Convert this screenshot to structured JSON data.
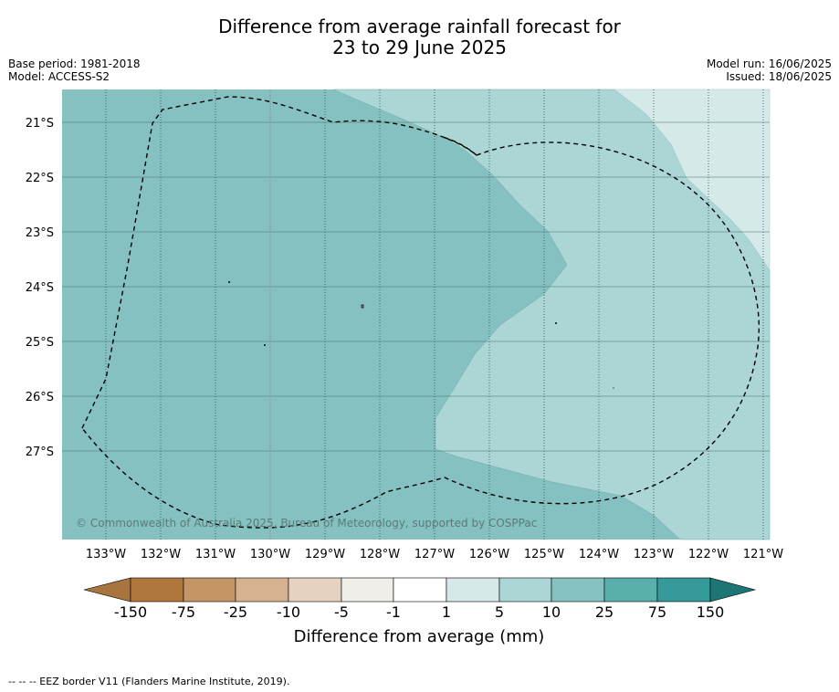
{
  "title_line1": "Difference from average rainfall forecast for",
  "title_line2": "23 to 29 June 2025",
  "base_period": "Base period: 1981-2018",
  "model": "Model: ACCESS-S2",
  "model_run": "Model run: 16/06/2025",
  "issued": "Issued: 18/06/2025",
  "copyright": "© Commonwealth of Australia 2025, Bureau of Meteorology, supported by COSPPac",
  "footer": "--  --  -- EEZ border V11 (Flanders Marine Institute, 2019).",
  "map": {
    "lon_labels": [
      "133°W",
      "132°W",
      "131°W",
      "130°W",
      "129°W",
      "128°W",
      "127°W",
      "126°W",
      "125°W",
      "124°W",
      "123°W",
      "122°W",
      "121°W"
    ],
    "lat_labels": [
      "21°S",
      "22°S",
      "23°S",
      "24°S",
      "25°S",
      "26°S",
      "27°S"
    ],
    "colors": {
      "category_10_to_25": "#85c1c0",
      "category_5_to_10": "#abd6d5",
      "category_1_to_5": "#d4e9e8"
    }
  },
  "colorbar": {
    "title": "Difference from average (mm)",
    "labels": [
      "-150",
      "-75",
      "-25",
      "-10",
      "-5",
      "-1",
      "1",
      "5",
      "10",
      "25",
      "75",
      "150"
    ],
    "colors": [
      "#a87440",
      "#b0773d",
      "#c39567",
      "#d5b391",
      "#e6d2c0",
      "#f0eee8",
      "#ffffff",
      "#d4e9e8",
      "#abd6d5",
      "#85c1c0",
      "#5aaeac",
      "#36999a",
      "#1d7574"
    ]
  }
}
